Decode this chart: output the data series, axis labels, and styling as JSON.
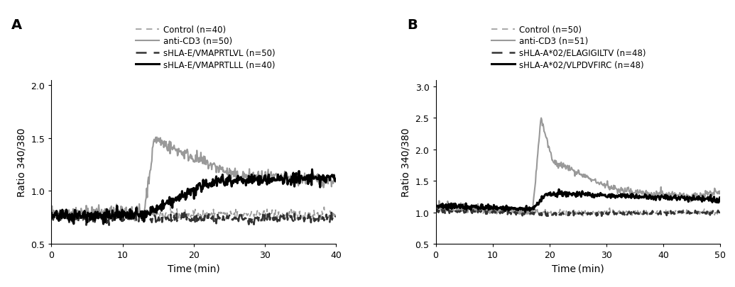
{
  "panel_A": {
    "title": "A",
    "xlim": [
      0,
      40
    ],
    "ylim": [
      0.5,
      2.05
    ],
    "yticks": [
      0.5,
      1.0,
      1.5,
      2.0
    ],
    "xticks": [
      0,
      10,
      20,
      30,
      40
    ],
    "xlabel": "Time (min)",
    "ylabel": "Ratio 340/380",
    "legend": [
      {
        "label": "Control (n=40)",
        "color": "#999999",
        "linestyle": "dashed",
        "linewidth": 1.2
      },
      {
        "label": "anti-CD3 (n=50)",
        "color": "#999999",
        "linestyle": "solid",
        "linewidth": 1.5
      },
      {
        "label": "sHLA-E/VMAPRTLVL (n=50)",
        "color": "#333333",
        "linestyle": "dashed",
        "linewidth": 1.8
      },
      {
        "label": "sHLA-E/VMAPRTLLL (n=40)",
        "color": "#000000",
        "linestyle": "solid",
        "linewidth": 2.2
      }
    ]
  },
  "panel_B": {
    "title": "B",
    "xlim": [
      0,
      50
    ],
    "ylim": [
      0.5,
      3.1
    ],
    "yticks": [
      0.5,
      1.0,
      1.5,
      2.0,
      2.5,
      3.0
    ],
    "xticks": [
      0,
      10,
      20,
      30,
      40,
      50
    ],
    "xlabel": "Time (min)",
    "ylabel": "Ratio 340/380",
    "legend": [
      {
        "label": "Control (n=50)",
        "color": "#999999",
        "linestyle": "dashed",
        "linewidth": 1.2
      },
      {
        "label": "anti-CD3 (n=51)",
        "color": "#999999",
        "linestyle": "solid",
        "linewidth": 1.5
      },
      {
        "label": "sHLA-A*02/ELAGIGILTV (n=48)",
        "color": "#333333",
        "linestyle": "dashed",
        "linewidth": 1.8
      },
      {
        "label": "sHLA-A*02/VLPDVFIRC (n=48)",
        "color": "#000000",
        "linestyle": "solid",
        "linewidth": 2.2
      }
    ]
  },
  "figure_bg": "#ffffff",
  "axes_bg": "#ffffff",
  "label_fontsize": 10,
  "tick_fontsize": 9,
  "legend_fontsize": 8.5,
  "panel_label_fontsize": 14
}
